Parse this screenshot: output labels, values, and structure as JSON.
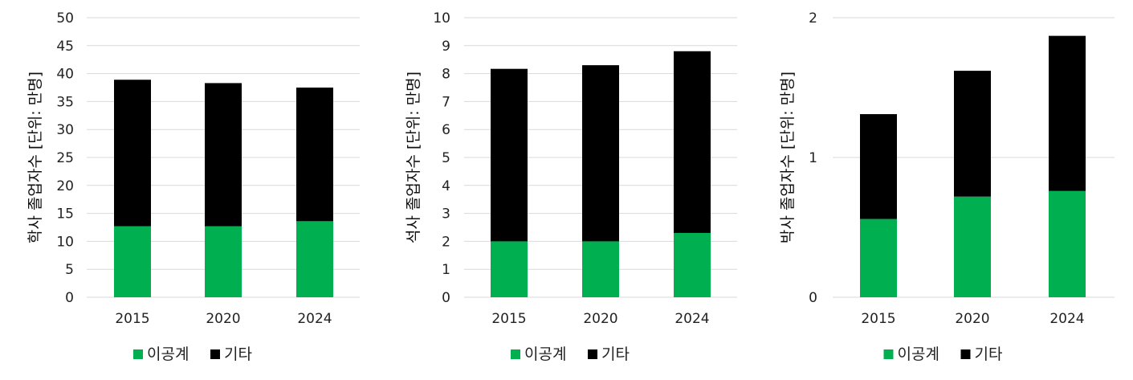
{
  "chart_data": [
    {
      "type": "bar",
      "stacked": true,
      "categories": [
        "2015",
        "2020",
        "2024"
      ],
      "series": [
        {
          "name": "이공계",
          "color": "#00b050",
          "values": [
            12.7,
            12.7,
            13.6
          ]
        },
        {
          "name": "기타",
          "color": "#000000",
          "values": [
            26.2,
            25.6,
            23.9
          ]
        }
      ],
      "ylabel": "학사 졸업자수 [단위: 만명]",
      "ylim": [
        0,
        50
      ],
      "yticks": [
        "0",
        "5",
        "10",
        "15",
        "20",
        "25",
        "30",
        "35",
        "40",
        "45",
        "50"
      ],
      "grid": true,
      "legend": "bottom"
    },
    {
      "type": "bar",
      "stacked": true,
      "categories": [
        "2015",
        "2020",
        "2024"
      ],
      "series": [
        {
          "name": "이공계",
          "color": "#00b050",
          "values": [
            2.0,
            2.0,
            2.3
          ]
        },
        {
          "name": "기타",
          "color": "#000000",
          "values": [
            6.17,
            6.3,
            6.5
          ]
        }
      ],
      "ylabel": "석사 졸업자수 [단위: 만명]",
      "ylim": [
        0,
        10
      ],
      "yticks": [
        "0",
        "1",
        "2",
        "3",
        "4",
        "5",
        "6",
        "7",
        "8",
        "9",
        "10"
      ],
      "grid": true,
      "legend": "bottom"
    },
    {
      "type": "bar",
      "stacked": true,
      "categories": [
        "2015",
        "2020",
        "2024"
      ],
      "series": [
        {
          "name": "이공계",
          "color": "#00b050",
          "values": [
            0.56,
            0.72,
            0.76
          ]
        },
        {
          "name": "기타",
          "color": "#000000",
          "values": [
            0.75,
            0.9,
            1.11
          ]
        }
      ],
      "ylabel": "박사 졸업자수 [단위: 만명]",
      "ylim": [
        0,
        2
      ],
      "yticks": [
        "0",
        "1",
        "2"
      ],
      "grid": true,
      "legend": "bottom"
    }
  ]
}
